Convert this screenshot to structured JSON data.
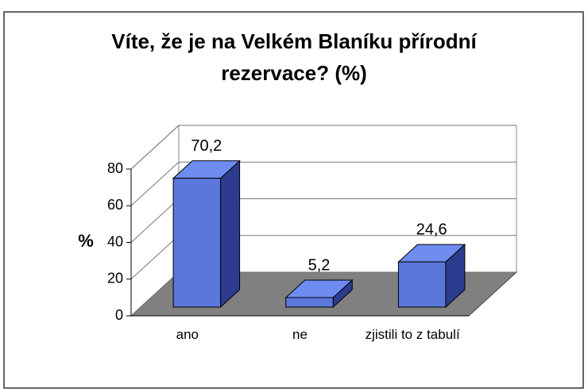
{
  "chart_data": {
    "type": "bar3d",
    "title": "Víte, že je na Velkém Blaníku přírodní rezervace? (%)",
    "ylabel": "%",
    "categories": [
      "ano",
      "ne",
      "zjistili to z tabulí"
    ],
    "values": [
      70.2,
      5.2,
      24.6
    ],
    "value_labels": [
      "70,2",
      "5,2",
      "24,6"
    ],
    "color": "#5b77dc",
    "ylim": [
      0,
      80
    ],
    "yticks": [
      0,
      20,
      40,
      60,
      80
    ],
    "grid": true
  }
}
